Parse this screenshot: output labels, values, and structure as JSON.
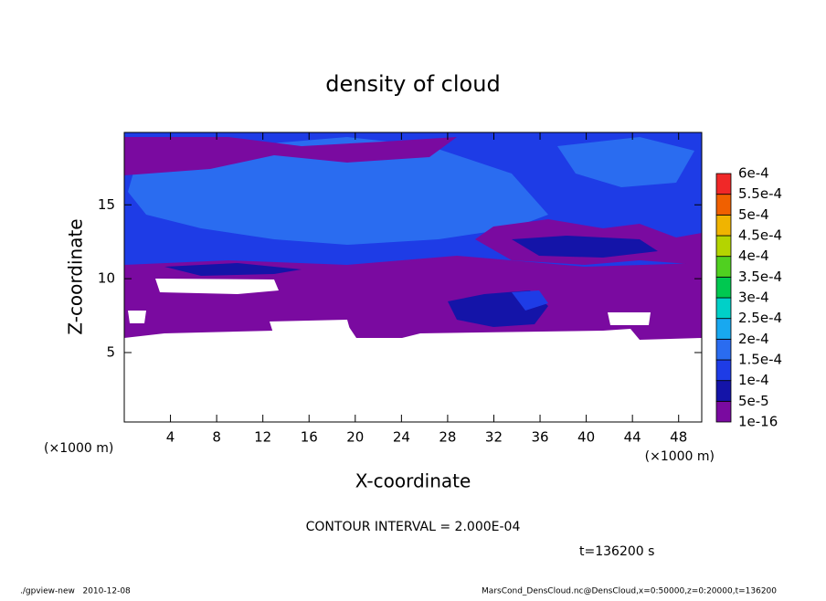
{
  "chart_data": {
    "type": "contour",
    "title": "density of cloud",
    "x_label": "X-coordinate",
    "y_label": "Z-coordinate",
    "x_unit_label": "(×1000 m)",
    "y_unit_label": "(×1000 m)",
    "xlim": [
      0,
      50
    ],
    "xticks": [
      4,
      8,
      12,
      16,
      20,
      24,
      28,
      32,
      36,
      40,
      44,
      48
    ],
    "ylim": [
      0.3,
      19.9
    ],
    "yticks": [
      5,
      10,
      15
    ],
    "levels": [
      {
        "value": 1e-16,
        "label": "1e-16"
      },
      {
        "value": 5e-05,
        "label": "5e-5"
      },
      {
        "value": 0.0001,
        "label": "1e-4"
      },
      {
        "value": 0.00015,
        "label": "1.5e-4"
      },
      {
        "value": 0.0002,
        "label": "2e-4"
      },
      {
        "value": 0.00025,
        "label": "2.5e-4"
      },
      {
        "value": 0.0003,
        "label": "3e-4"
      },
      {
        "value": 0.00035,
        "label": "3.5e-4"
      },
      {
        "value": 0.0004,
        "label": "4e-4"
      },
      {
        "value": 0.00045,
        "label": "4.5e-4"
      },
      {
        "value": 0.0005,
        "label": "5e-4"
      },
      {
        "value": 0.00055,
        "label": "5.5e-4"
      },
      {
        "value": 0.0006,
        "label": "6e-4"
      }
    ],
    "colors": [
      "#7a0aa0",
      "#1414a8",
      "#1e3ce6",
      "#2a6cf0",
      "#18a8f0",
      "#00d0c8",
      "#00c850",
      "#50d020",
      "#b4d400",
      "#f0b400",
      "#f06000",
      "#f02828",
      "#f08a8a"
    ],
    "contour_interval_text": "CONTOUR INTERVAL = 2.000E-04",
    "time_label": "t=136200 s",
    "footer_left": "./gpview-new   2010-12-08",
    "footer_right": "MarsCond_DensCloud.nc@DensCloud,x=0:50000,z=0:20000,t=136200"
  }
}
